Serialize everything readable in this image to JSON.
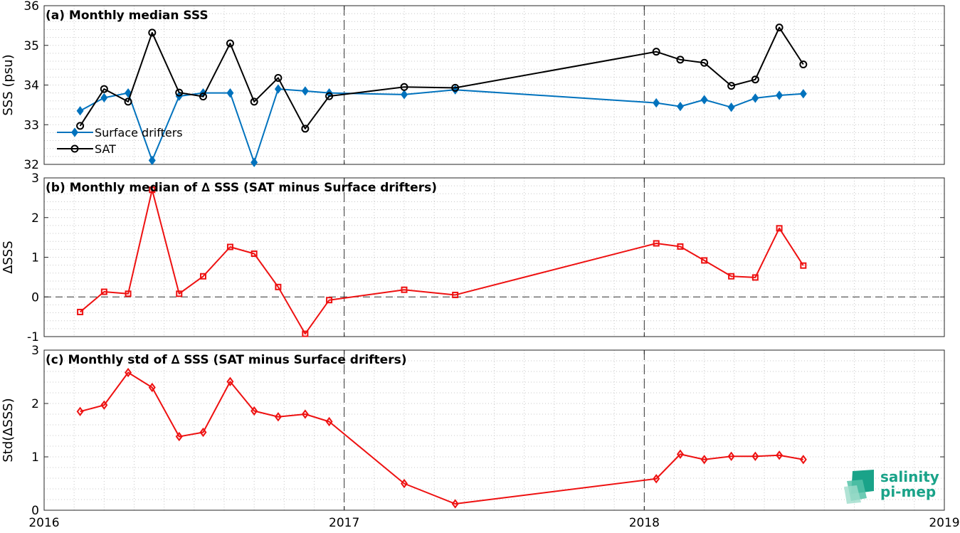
{
  "chart_data": [
    {
      "type": "line",
      "title": "(a) Monthly median SSS",
      "ylabel": "SSS (psu)",
      "ylim": [
        32,
        36
      ],
      "yticks": [
        32,
        33,
        34,
        35,
        36
      ],
      "xlim": [
        2016,
        2019
      ],
      "grid": true,
      "legend_position": "bottom-left",
      "series": [
        {
          "name": "Surface drifters",
          "color": "#0072bd",
          "marker": "diamond",
          "x": [
            2016.12,
            2016.2,
            2016.28,
            2016.36,
            2016.45,
            2016.53,
            2016.62,
            2016.7,
            2016.78,
            2016.87,
            2016.95,
            2017.2,
            2017.37,
            2018.04,
            2018.12,
            2018.2,
            2018.29,
            2018.37,
            2018.45,
            2018.53
          ],
          "values": [
            33.35,
            33.68,
            33.8,
            32.1,
            33.72,
            33.8,
            33.8,
            32.05,
            33.9,
            33.85,
            33.8,
            33.76,
            33.88,
            33.55,
            33.46,
            33.63,
            33.44,
            33.67,
            33.74,
            33.78
          ]
        },
        {
          "name": "SAT",
          "color": "#000000",
          "marker": "circle",
          "x": [
            2016.12,
            2016.2,
            2016.28,
            2016.36,
            2016.45,
            2016.53,
            2016.62,
            2016.7,
            2016.78,
            2016.87,
            2016.95,
            2017.2,
            2017.37,
            2018.04,
            2018.12,
            2018.2,
            2018.29,
            2018.37,
            2018.45,
            2018.53
          ],
          "values": [
            32.97,
            33.9,
            33.58,
            35.32,
            33.81,
            33.71,
            35.05,
            33.58,
            34.18,
            32.9,
            33.72,
            33.95,
            33.93,
            34.84,
            34.64,
            34.56,
            33.98,
            34.14,
            35.45,
            34.52
          ]
        }
      ]
    },
    {
      "type": "line",
      "title": "(b) Monthly median of ∆ SSS (SAT minus Surface drifters)",
      "ylabel": "∆SSS",
      "ylim": [
        -1,
        3
      ],
      "yticks": [
        -1,
        0,
        1,
        2,
        3
      ],
      "xlim": [
        2016,
        2019
      ],
      "grid": true,
      "zero_line": true,
      "series": [
        {
          "color": "#ee1111",
          "marker": "square",
          "x": [
            2016.12,
            2016.2,
            2016.28,
            2016.36,
            2016.45,
            2016.53,
            2016.62,
            2016.7,
            2016.78,
            2016.87,
            2016.95,
            2017.2,
            2017.37,
            2018.04,
            2018.12,
            2018.2,
            2018.29,
            2018.37,
            2018.45,
            2018.53
          ],
          "values": [
            -0.38,
            0.13,
            0.08,
            2.7,
            0.08,
            0.52,
            1.26,
            1.09,
            0.25,
            -0.93,
            -0.08,
            0.18,
            0.05,
            1.35,
            1.27,
            0.92,
            0.52,
            0.49,
            1.73,
            0.79
          ]
        }
      ]
    },
    {
      "type": "line",
      "title": "(c) Monthly std of ∆ SSS (SAT minus Surface drifters)",
      "ylabel": "Std(∆SSS)",
      "ylim": [
        0,
        3
      ],
      "yticks": [
        0,
        1,
        2,
        3
      ],
      "xlim": [
        2016,
        2019
      ],
      "xticks": [
        2016,
        2017,
        2018,
        2019
      ],
      "grid": true,
      "series": [
        {
          "color": "#ee1111",
          "marker": "diamond",
          "x": [
            2016.12,
            2016.2,
            2016.28,
            2016.36,
            2016.45,
            2016.53,
            2016.62,
            2016.7,
            2016.78,
            2016.87,
            2016.95,
            2017.2,
            2017.37,
            2018.04,
            2018.12,
            2018.2,
            2018.29,
            2018.37,
            2018.45,
            2018.53
          ],
          "values": [
            1.85,
            1.97,
            2.58,
            2.3,
            1.38,
            1.46,
            2.41,
            1.86,
            1.75,
            1.8,
            1.66,
            0.5,
            0.12,
            0.59,
            1.05,
            0.95,
            1.01,
            1.01,
            1.03,
            0.95
          ]
        }
      ]
    }
  ],
  "logo": {
    "line1": "salinity",
    "line2": "pi-mep",
    "color": "#1aa389"
  }
}
